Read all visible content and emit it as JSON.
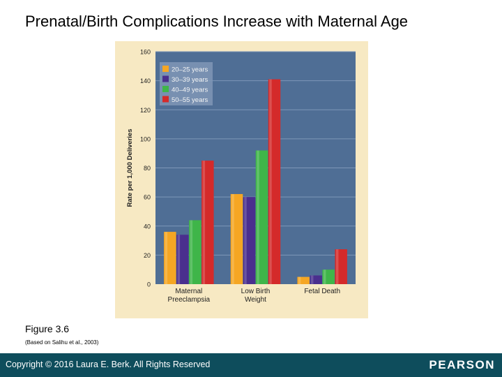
{
  "slide": {
    "title": "Prenatal/Birth Complications Increase with Maternal Age",
    "figure_label": "Figure 3.6",
    "source_note": "(Based on Salihu et al., 2003)"
  },
  "footer": {
    "copyright": "Copyright © 2016 Laura E. Berk. All Rights Reserved",
    "brand": "PEARSON"
  },
  "chart_data": {
    "type": "bar",
    "title": "",
    "xlabel": "",
    "ylabel": "Rate per 1,000 Deliveries",
    "ylim": [
      0,
      160
    ],
    "yticks": [
      "0",
      "20",
      "40",
      "60",
      "80",
      "100",
      "120",
      "140",
      "160"
    ],
    "grid": true,
    "legend_position": "top-left",
    "categories": [
      [
        "Maternal",
        "Preeclampsia"
      ],
      [
        "Low Birth",
        "Weight"
      ],
      [
        "Fetal Death"
      ]
    ],
    "series": [
      {
        "name": "20–25 years",
        "color": "#f5a623",
        "values": [
          36,
          62,
          5
        ]
      },
      {
        "name": "30–39 years",
        "color": "#4a2f8e",
        "values": [
          34,
          60,
          6
        ]
      },
      {
        "name": "40–49 years",
        "color": "#3fb549",
        "values": [
          44,
          92,
          10
        ]
      },
      {
        "name": "50–55 years",
        "color": "#d42a2a",
        "values": [
          85,
          141,
          24
        ]
      }
    ],
    "colors": {
      "frame": "#f7e9c3",
      "plot_background": "#4f6e95",
      "gridline": "#7e97b8",
      "axis_text": "#1e1e1e"
    }
  }
}
